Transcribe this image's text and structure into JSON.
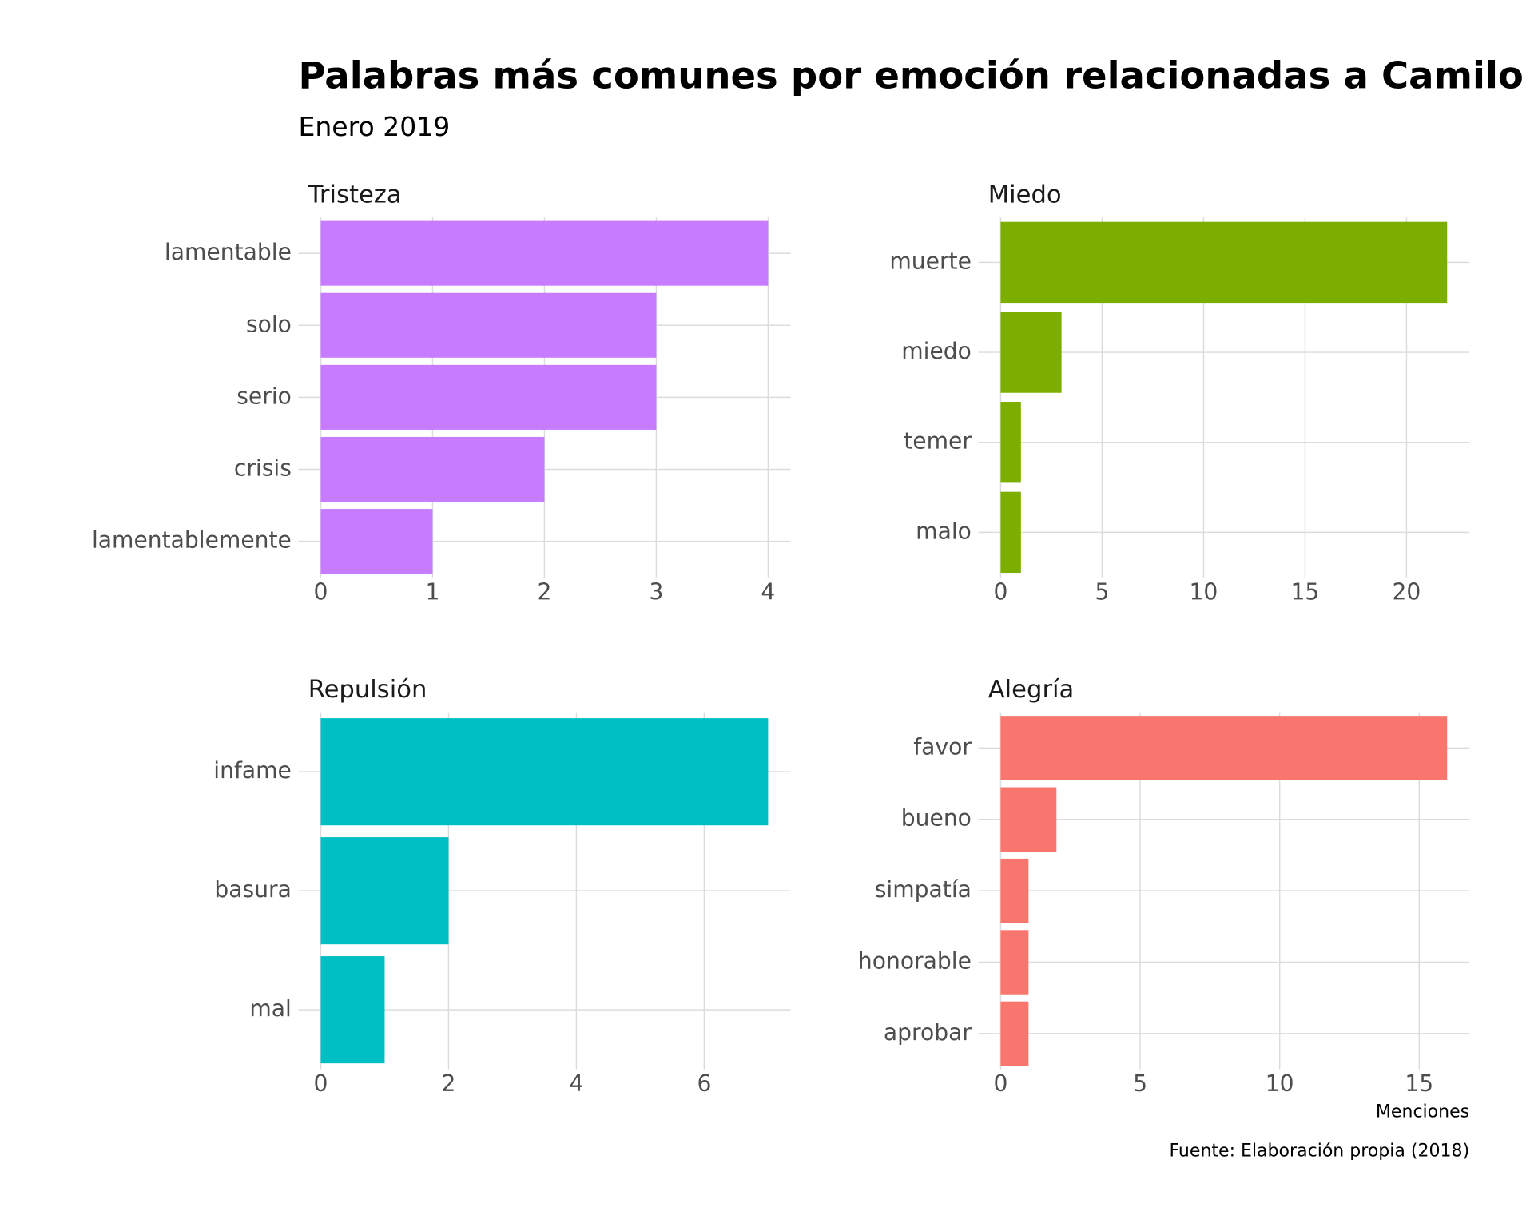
{
  "title": "Palabras más comunes por emoción relacionadas a Camilo Catrillanca",
  "subtitle": "Enero 2019",
  "x_label": "Menciones",
  "caption": "Fuente: Elaboración propia (2018)",
  "chart_data": [
    {
      "type": "bar",
      "orientation": "horizontal",
      "title": "Tristeza",
      "categories": [
        "lamentable",
        "solo",
        "serio",
        "crisis",
        "lamentablemente"
      ],
      "values": [
        4,
        3,
        3,
        2,
        1
      ],
      "color": "#C77CFF",
      "xlim": [
        -0.2,
        4.2
      ],
      "xticks": [
        0,
        1,
        2,
        3,
        4
      ],
      "grid": true
    },
    {
      "type": "bar",
      "orientation": "horizontal",
      "title": "Miedo",
      "categories": [
        "muerte",
        "miedo",
        "temer",
        "malo"
      ],
      "values": [
        22,
        3,
        1,
        1
      ],
      "color": "#7CAE00",
      "xlim": [
        -1.1,
        23.1
      ],
      "xticks": [
        0,
        5,
        10,
        15,
        20
      ],
      "grid": true
    },
    {
      "type": "bar",
      "orientation": "horizontal",
      "title": "Repulsión",
      "categories": [
        "infame",
        "basura",
        "mal"
      ],
      "values": [
        7,
        2,
        1
      ],
      "color": "#00BFC4",
      "xlim": [
        -0.35,
        7.35
      ],
      "xticks": [
        0,
        2,
        4,
        6
      ],
      "grid": true
    },
    {
      "type": "bar",
      "orientation": "horizontal",
      "title": "Alegría",
      "categories": [
        "favor",
        "bueno",
        "simpatía",
        "honorable",
        "aprobar"
      ],
      "values": [
        16,
        2,
        1,
        1,
        1
      ],
      "color": "#F8766D",
      "xlim": [
        -0.8,
        16.8
      ],
      "xticks": [
        0,
        5,
        10,
        15
      ],
      "grid": true
    }
  ]
}
